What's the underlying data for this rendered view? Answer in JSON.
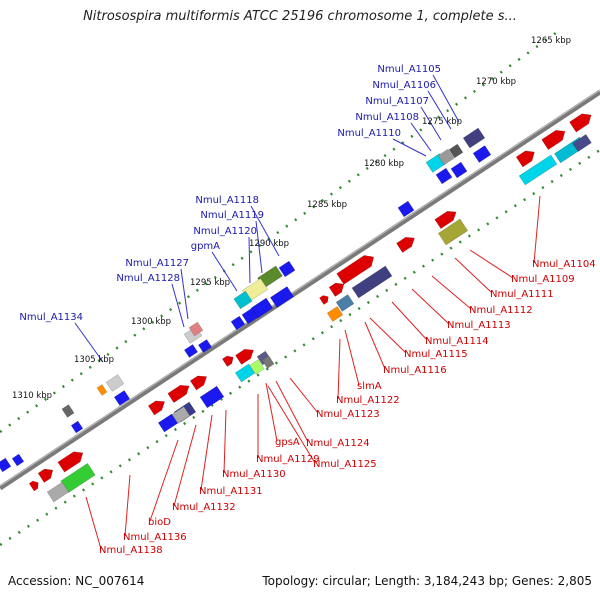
{
  "title": "Nitrosospira multiformis ATCC 25196 chromosome 1, complete s...",
  "footer": {
    "accession": "Accession: NC_007614",
    "summary": "Topology: circular; Length: 3,184,243 bp; Genes: 2,805"
  },
  "scale_labels": [
    "1265 kbp",
    "1270 kbp",
    "1275 kbp",
    "1280 kbp",
    "1285 kbp",
    "1290 kbp",
    "1295 kbp",
    "1300 kbp",
    "1305 kbp",
    "1310 kbp"
  ],
  "upper_gene_labels": [
    "Nmul_A1105",
    "Nmul_A1106",
    "Nmul_A1107",
    "Nmul_A1108",
    "Nmul_A1110",
    "Nmul_A1118",
    "Nmul_A1119",
    "Nmul_A1120",
    "gpmA",
    "Nmul_A1127",
    "Nmul_A1128",
    "Nmul_A1134"
  ],
  "lower_gene_labels": [
    "Nmul_A1104",
    "Nmul_A1109",
    "Nmul_A1111",
    "Nmul_A1112",
    "Nmul_A1113",
    "Nmul_A1114",
    "Nmul_A1115",
    "Nmul_A1116",
    "slmA",
    "Nmul_A1122",
    "Nmul_A1123",
    "Nmul_A1124",
    "gpsA",
    "Nmul_A1125",
    "Nmul_A1129",
    "Nmul_A1130",
    "Nmul_A1131",
    "Nmul_A1132",
    "bioD",
    "Nmul_A1136",
    "Nmul_A1138"
  ],
  "colors": {
    "forward_strand": "#dd0000",
    "reverse_strand": "#1a1aee",
    "upper_label": "#1a1aaa",
    "lower_label": "#cc0000",
    "backbone": "#808080",
    "ticks": "#228b22"
  }
}
